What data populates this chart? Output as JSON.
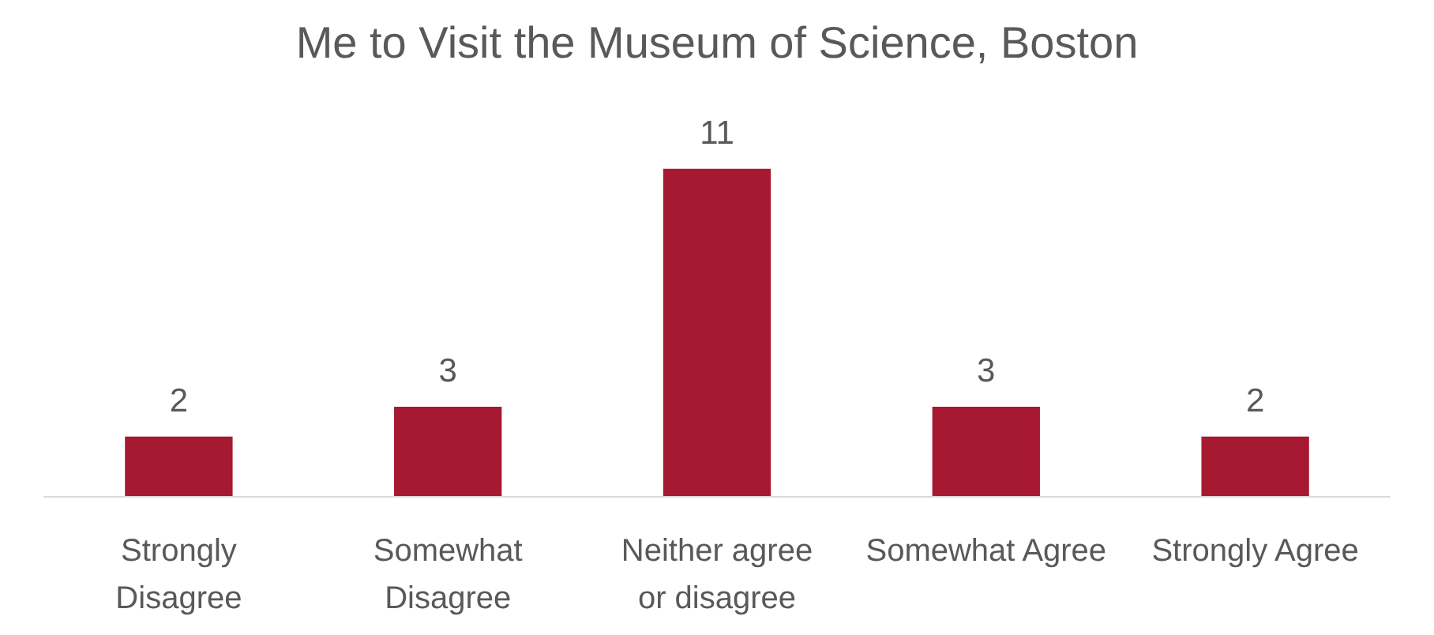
{
  "chart_data": {
    "type": "bar",
    "title": "Me to Visit the Museum of Science, Boston",
    "categories": [
      "Strongly Disagree",
      "Somewhat Disagree",
      "Neither agree or disagree",
      "Somewhat Agree",
      "Strongly Agree"
    ],
    "values": [
      2,
      3,
      11,
      3,
      2
    ],
    "color": "#a71930",
    "data_labels": true,
    "grid": false
  }
}
